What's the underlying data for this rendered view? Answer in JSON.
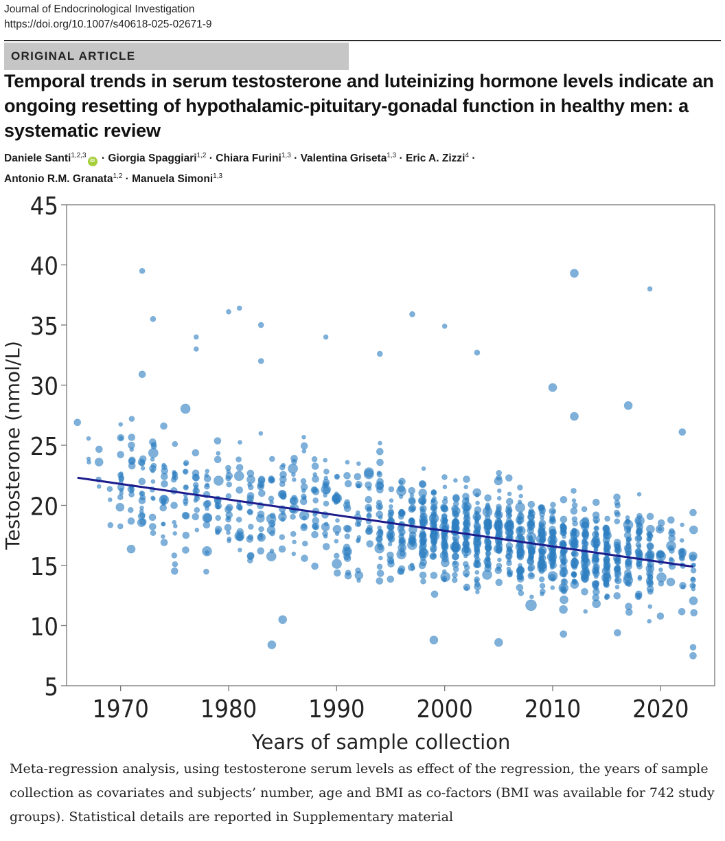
{
  "journal": {
    "name": "Journal of Endocrinological Investigation",
    "doi": "https://doi.org/10.1007/s40618-025-02671-9"
  },
  "article_type": "ORIGINAL ARTICLE",
  "title": "Temporal trends in serum testosterone and luteinizing hormone levels indicate an ongoing resetting of hypothalamic-pituitary-gonadal function in healthy men: a systematic review",
  "authors": [
    {
      "name": "Daniele Santi",
      "aff": "1,2,3",
      "orcid": true
    },
    {
      "name": "Giorgia Spaggiari",
      "aff": "1,2"
    },
    {
      "name": "Chiara Furini",
      "aff": "1,3"
    },
    {
      "name": "Valentina Griseta",
      "aff": "1,3"
    },
    {
      "name": "Eric A. Zizzi",
      "aff": "4"
    },
    {
      "name": "Antonio R.M. Granata",
      "aff": "1,2"
    },
    {
      "name": "Manuela Simoni",
      "aff": "1,3"
    }
  ],
  "orcid_label": "iD",
  "chart_data": {
    "type": "scatter",
    "title": "",
    "xlabel": "Years of sample collection",
    "ylabel": "Testosterone (nmol/L)",
    "xlim": [
      1965,
      2025
    ],
    "ylim": [
      5,
      45
    ],
    "xticks": [
      "1970",
      "1980",
      "1990",
      "2000",
      "2010",
      "2020"
    ],
    "yticks": [
      "5",
      "10",
      "15",
      "20",
      "25",
      "30",
      "35",
      "40",
      "45"
    ],
    "grid": false,
    "point_color": "#2f7fc1",
    "line_color": "#1c1c8c",
    "regression": {
      "x": [
        1966,
        2023
      ],
      "y": [
        22.3,
        14.9
      ]
    },
    "outliers": [
      {
        "x": 1966,
        "y": 26.9,
        "r": 5
      },
      {
        "x": 1968,
        "y": 23.6,
        "r": 6
      },
      {
        "x": 1972,
        "y": 39.5,
        "r": 4
      },
      {
        "x": 1973,
        "y": 35.5,
        "r": 4
      },
      {
        "x": 1972,
        "y": 30.9,
        "r": 5
      },
      {
        "x": 1977,
        "y": 34.0,
        "r": 3.5
      },
      {
        "x": 1977,
        "y": 33.0,
        "r": 3.5
      },
      {
        "x": 1980,
        "y": 36.1,
        "r": 3.5
      },
      {
        "x": 1981,
        "y": 36.4,
        "r": 3.5
      },
      {
        "x": 1983,
        "y": 35.0,
        "r": 4
      },
      {
        "x": 1983,
        "y": 32.0,
        "r": 4
      },
      {
        "x": 1989,
        "y": 34.0,
        "r": 3.5
      },
      {
        "x": 1994,
        "y": 32.6,
        "r": 4
      },
      {
        "x": 1997,
        "y": 35.9,
        "r": 4
      },
      {
        "x": 2000,
        "y": 34.9,
        "r": 3.5
      },
      {
        "x": 2003,
        "y": 32.7,
        "r": 4
      },
      {
        "x": 2012,
        "y": 39.3,
        "r": 6
      },
      {
        "x": 2019,
        "y": 38.0,
        "r": 3.5
      },
      {
        "x": 1984,
        "y": 8.4,
        "r": 6
      },
      {
        "x": 1985,
        "y": 10.5,
        "r": 6
      },
      {
        "x": 1999,
        "y": 8.8,
        "r": 6
      },
      {
        "x": 2005,
        "y": 8.6,
        "r": 6
      },
      {
        "x": 2023,
        "y": 7.5,
        "r": 5
      },
      {
        "x": 2023,
        "y": 8.2,
        "r": 4.5
      },
      {
        "x": 2016,
        "y": 9.4,
        "r": 5
      },
      {
        "x": 2011,
        "y": 9.3,
        "r": 5
      },
      {
        "x": 2010,
        "y": 29.8,
        "r": 6
      },
      {
        "x": 2012,
        "y": 27.4,
        "r": 6
      },
      {
        "x": 2017,
        "y": 28.3,
        "r": 6
      },
      {
        "x": 2022,
        "y": 26.1,
        "r": 5
      },
      {
        "x": 2008,
        "y": 11.7,
        "r": 8
      },
      {
        "x": 2023,
        "y": 19.4,
        "r": 5
      },
      {
        "x": 2022,
        "y": 16.1,
        "r": 6
      },
      {
        "x": 2023,
        "y": 15.8,
        "r": 6
      }
    ]
  },
  "caption": "Meta-regression analysis, using testosterone serum levels as effect of the regression, the years of sample collection as covariates and subjects’ number, age and BMI as co-factors (BMI was available for 742 study groups). Statistical details are reported in Supplementary material"
}
